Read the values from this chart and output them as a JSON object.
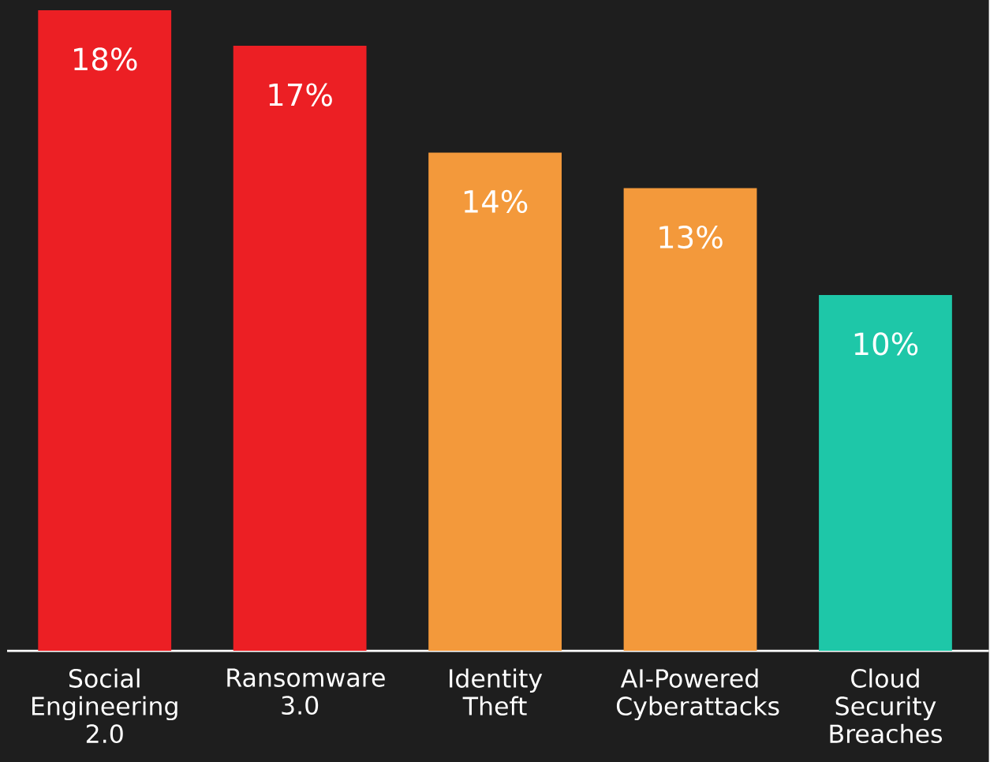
{
  "chart_data": {
    "type": "bar",
    "categories": [
      "Social Engineering 2.0",
      "Ransomware 3.0",
      "Identity Theft",
      "AI-Powered Cyberattacks",
      "Cloud Security Breaches"
    ],
    "values": [
      18,
      17,
      14,
      13,
      10
    ],
    "value_labels": [
      "18%",
      "17%",
      "14%",
      "13%",
      "10%"
    ],
    "colors": [
      "#ec1f24",
      "#ec1f24",
      "#f3993b",
      "#f3993b",
      "#1ec7a8"
    ]
  }
}
